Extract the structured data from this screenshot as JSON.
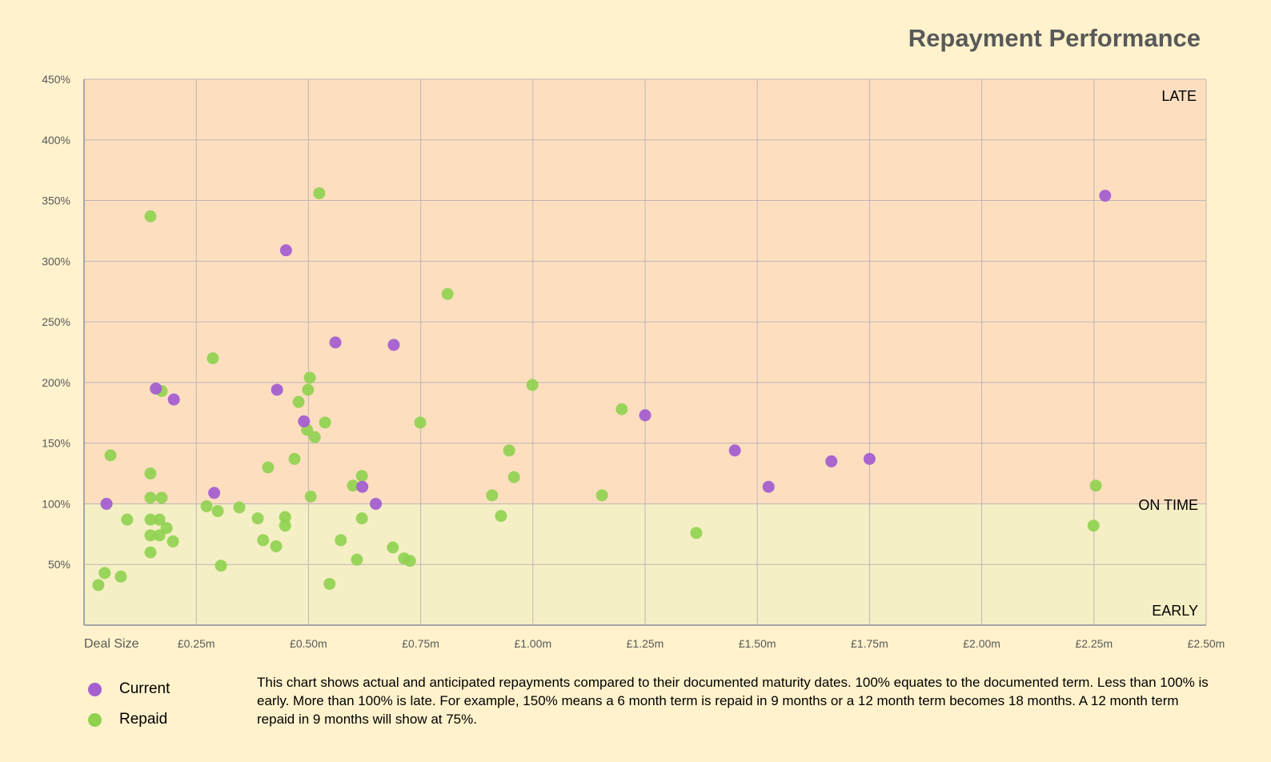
{
  "chart_data": {
    "type": "scatter",
    "title": "Repayment Performance",
    "xlabel": "Deal Size",
    "xlim": [
      0,
      2.5
    ],
    "ylim": [
      0,
      450
    ],
    "x_ticks": [
      {
        "v": 0.25,
        "label": "£0.25m"
      },
      {
        "v": 0.5,
        "label": "£0.50m"
      },
      {
        "v": 0.75,
        "label": "£0.75m"
      },
      {
        "v": 1.0,
        "label": "£1.00m"
      },
      {
        "v": 1.25,
        "label": "£1.25m"
      },
      {
        "v": 1.5,
        "label": "£1.50m"
      },
      {
        "v": 1.75,
        "label": "£1.75m"
      },
      {
        "v": 2.0,
        "label": "£2.00m"
      },
      {
        "v": 2.25,
        "label": "£2.25m"
      },
      {
        "v": 2.5,
        "label": "£2.50m"
      }
    ],
    "y_ticks": [
      {
        "v": 50,
        "label": "50%"
      },
      {
        "v": 100,
        "label": "100%"
      },
      {
        "v": 150,
        "label": "150%"
      },
      {
        "v": 200,
        "label": "200%"
      },
      {
        "v": 250,
        "label": "250%"
      },
      {
        "v": 300,
        "label": "300%"
      },
      {
        "v": 350,
        "label": "350%"
      },
      {
        "v": 400,
        "label": "400%"
      },
      {
        "v": 450,
        "label": "450%"
      }
    ],
    "grid": true,
    "regions": [
      {
        "label": "LATE",
        "from": 100,
        "to": 450,
        "color": "#fddfc0"
      },
      {
        "label": "EARLY",
        "from": 0,
        "to": 100,
        "color": "#f5efc5"
      }
    ],
    "annotations": {
      "late": "LATE",
      "on_time": "ON TIME",
      "early": "EARLY"
    },
    "legend_position": "bottom-left",
    "series": [
      {
        "name": "Current",
        "color": "#a45fd0",
        "points": [
          [
            0.05,
            100
          ],
          [
            0.45,
            309
          ],
          [
            0.16,
            195
          ],
          [
            0.2,
            186
          ],
          [
            0.29,
            109
          ],
          [
            0.43,
            194
          ],
          [
            0.49,
            168
          ],
          [
            0.56,
            233
          ],
          [
            0.69,
            231
          ],
          [
            0.62,
            114
          ],
          [
            0.65,
            100
          ],
          [
            1.25,
            173
          ],
          [
            1.45,
            144
          ],
          [
            1.525,
            114
          ],
          [
            1.665,
            135
          ],
          [
            1.75,
            137
          ],
          [
            2.275,
            354
          ]
        ]
      },
      {
        "name": "Repaid",
        "color": "#8fd14f",
        "points": [
          [
            0.148,
            337
          ],
          [
            0.524,
            356
          ],
          [
            0.81,
            273
          ],
          [
            0.287,
            220
          ],
          [
            0.173,
            193
          ],
          [
            0.503,
            204
          ],
          [
            0.499,
            194
          ],
          [
            0.478,
            184
          ],
          [
            0.999,
            198
          ],
          [
            0.537,
            167
          ],
          [
            0.749,
            167
          ],
          [
            0.497,
            161
          ],
          [
            0.514,
            155
          ],
          [
            1.198,
            178
          ],
          [
            0.059,
            140
          ],
          [
            0.469,
            137
          ],
          [
            0.41,
            130
          ],
          [
            0.947,
            144
          ],
          [
            0.958,
            122
          ],
          [
            0.148,
            125
          ],
          [
            0.619,
            123
          ],
          [
            0.599,
            115
          ],
          [
            0.148,
            105
          ],
          [
            0.173,
            105
          ],
          [
            0.505,
            106
          ],
          [
            0.909,
            107
          ],
          [
            1.154,
            107
          ],
          [
            2.254,
            115
          ],
          [
            0.273,
            98
          ],
          [
            0.298,
            94
          ],
          [
            0.346,
            97
          ],
          [
            0.387,
            88
          ],
          [
            0.448,
            89
          ],
          [
            0.448,
            82
          ],
          [
            0.619,
            88
          ],
          [
            0.929,
            90
          ],
          [
            0.096,
            87
          ],
          [
            0.148,
            87
          ],
          [
            0.168,
            87
          ],
          [
            0.184,
            80
          ],
          [
            0.148,
            74
          ],
          [
            0.168,
            74
          ],
          [
            0.198,
            69
          ],
          [
            0.399,
            70
          ],
          [
            0.428,
            65
          ],
          [
            0.572,
            70
          ],
          [
            0.688,
            64
          ],
          [
            0.713,
            55
          ],
          [
            0.726,
            53
          ],
          [
            0.608,
            54
          ],
          [
            0.148,
            60
          ],
          [
            0.305,
            49
          ],
          [
            0.046,
            43
          ],
          [
            0.082,
            40
          ],
          [
            0.032,
            33
          ],
          [
            0.547,
            34
          ],
          [
            1.364,
            76
          ],
          [
            2.249,
            82
          ]
        ]
      }
    ]
  },
  "note": "This chart shows actual and anticipated repayments compared to their documented maturity dates.  100% equates to the documented term.  Less than 100% is early.  More than 100% is late.  For example, 150% means a 6 month term is repaid in 9 months or a 12 month term becomes 18 months.  A 12 month term repaid in 9 months will show at 75%."
}
